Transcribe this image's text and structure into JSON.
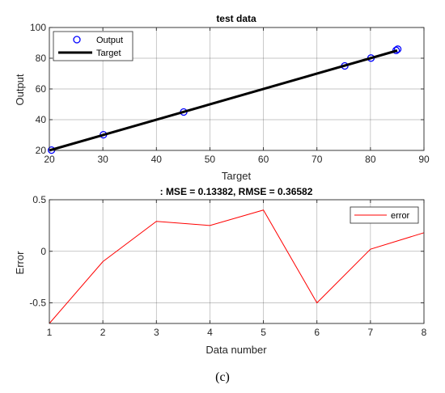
{
  "chart_data": [
    {
      "type": "scatter",
      "title": "test data",
      "xlabel": "Target",
      "ylabel": "Output",
      "xlim": [
        20,
        90
      ],
      "ylim": [
        20,
        100
      ],
      "xticks": [
        20,
        30,
        40,
        50,
        60,
        70,
        80,
        90
      ],
      "yticks": [
        20,
        40,
        60,
        80,
        100
      ],
      "grid": true,
      "legend": {
        "position": "top-left",
        "entries": [
          "Output",
          "Target"
        ]
      },
      "series": [
        {
          "name": "Output",
          "kind": "scatter",
          "marker": "circle-open",
          "color": "#0000ff",
          "x": [
            20.4,
            30.1,
            45.1,
            75.2,
            80.1,
            84.8,
            85.1
          ],
          "y": [
            20.2,
            30.2,
            45.0,
            75.0,
            80.1,
            85.1,
            85.9
          ]
        },
        {
          "name": "Target",
          "kind": "line",
          "color": "#000000",
          "x": [
            20,
            85
          ],
          "y": [
            20,
            85
          ]
        }
      ]
    },
    {
      "type": "line",
      "title": ": MSE = 0.13382, RMSE = 0.36582",
      "xlabel": "Data number",
      "ylabel": "Error",
      "xlim": [
        1,
        8
      ],
      "ylim": [
        -0.7,
        0.5
      ],
      "xticks": [
        1,
        2,
        3,
        4,
        5,
        6,
        7,
        8
      ],
      "yticks": [
        -0.5,
        0,
        0.5
      ],
      "ytick_labels": [
        "-0.5",
        "0",
        "0.5"
      ],
      "grid": true,
      "legend": {
        "position": "top-right",
        "entries": [
          "error"
        ]
      },
      "series": [
        {
          "name": "error",
          "color": "#ff0000",
          "x": [
            1,
            2,
            3,
            4,
            5,
            6,
            7,
            8
          ],
          "y": [
            -0.7,
            -0.1,
            0.29,
            0.25,
            0.4,
            -0.5,
            0.02,
            0.18
          ]
        }
      ]
    }
  ],
  "caption": "(c)"
}
